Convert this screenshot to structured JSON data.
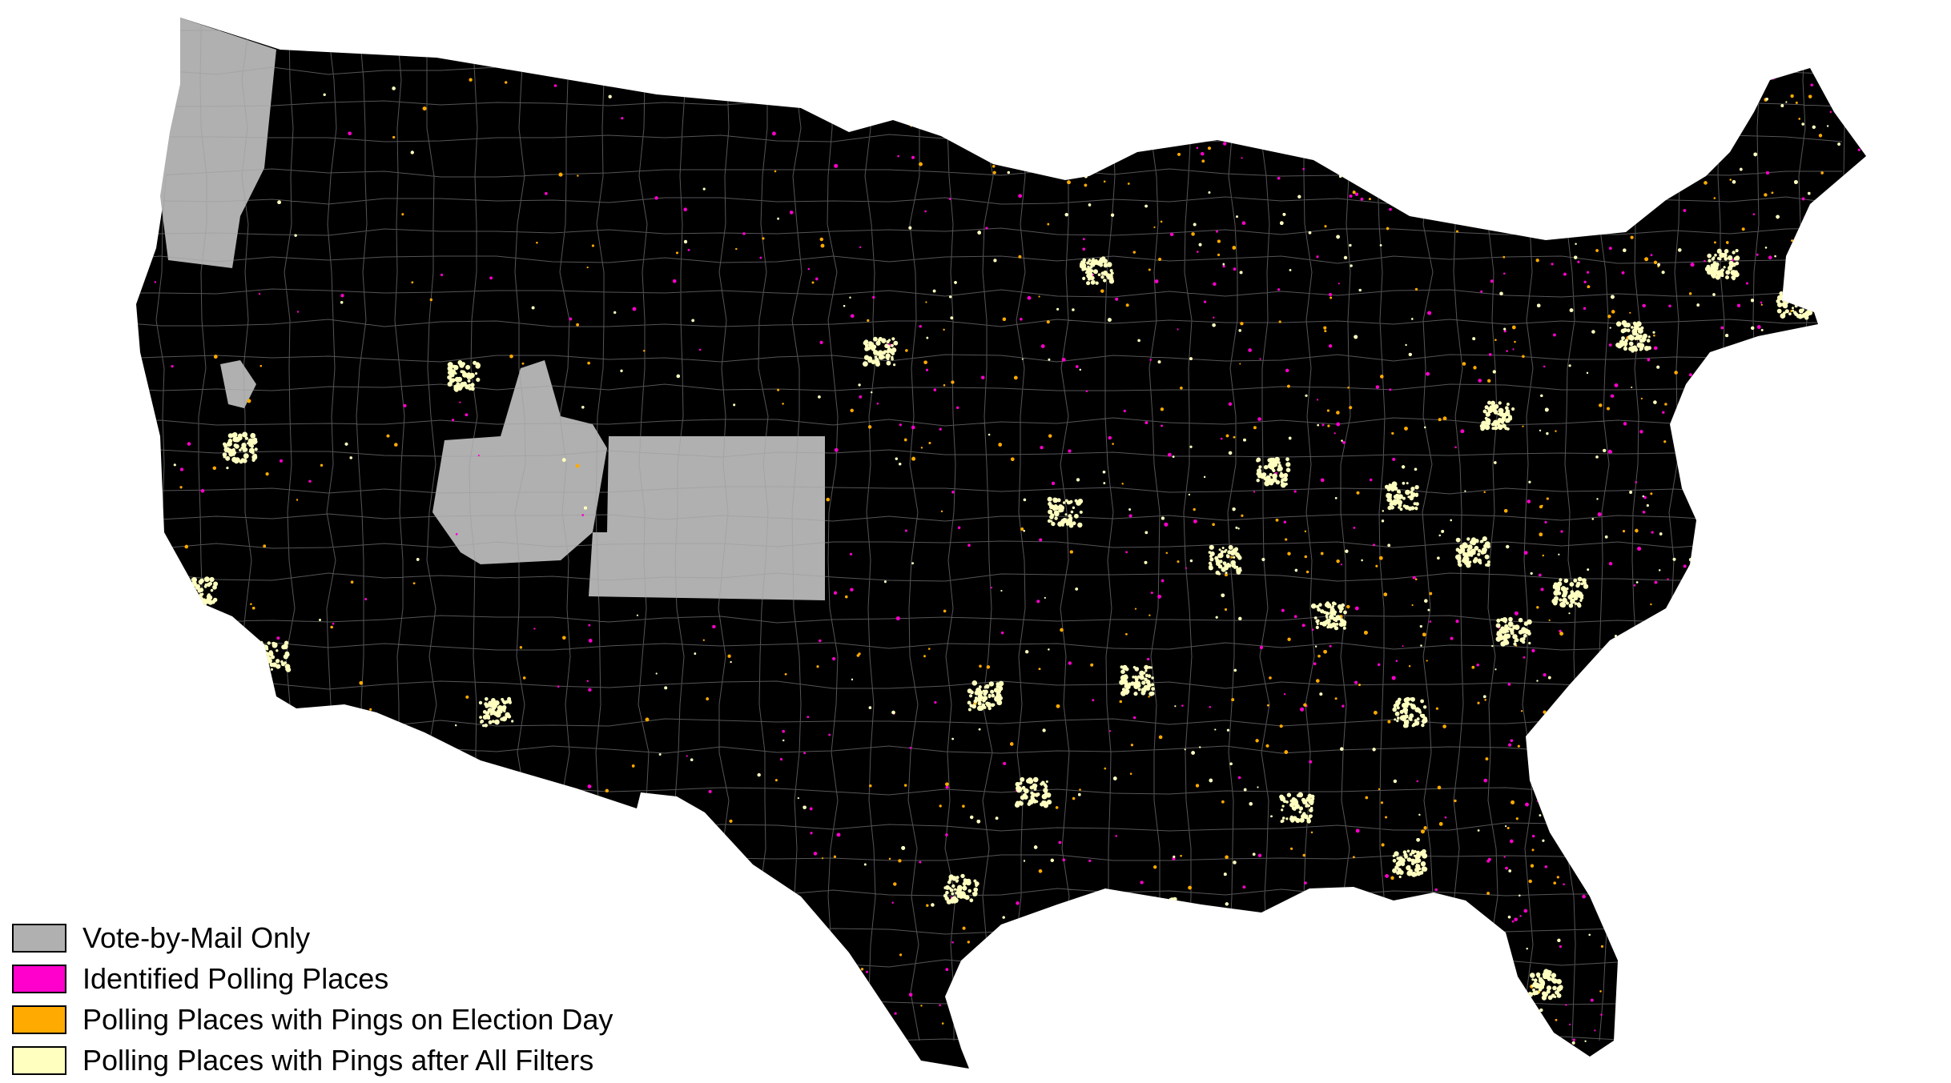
{
  "legend": {
    "items": [
      {
        "label": "Vote-by-Mail Only",
        "color": "#b0b0b0"
      },
      {
        "label": "Identified Polling Places",
        "color": "#ff00cc"
      },
      {
        "label": "Polling Places with Pings on Election Day",
        "color": "#ffaa00"
      },
      {
        "label": "Polling Places with Pings after All Filters",
        "color": "#ffffc0"
      }
    ]
  },
  "colors": {
    "land": "#000000",
    "borders": "#9a9aa0",
    "vote_by_mail": "#b0b0b0",
    "identified": "#ff00cc",
    "pings_election_day": "#ffaa00",
    "pings_after_filters": "#ffffc0"
  }
}
